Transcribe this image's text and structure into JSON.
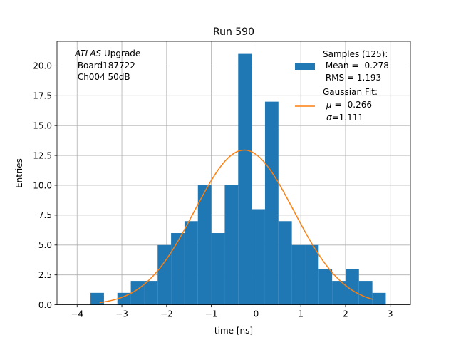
{
  "chart_data": {
    "type": "bar",
    "title": "Run 590",
    "xlabel": "time [ns]",
    "ylabel": "Entries",
    "xlim": [
      -4.45,
      3.45
    ],
    "ylim": [
      0,
      22.05
    ],
    "grid": true,
    "xticks": [
      -4,
      -3,
      -2,
      -1,
      0,
      1,
      2,
      3
    ],
    "xtick_labels": [
      "−4",
      "−3",
      "−2",
      "−1",
      "0",
      "1",
      "2",
      "3"
    ],
    "yticks": [
      0,
      2.5,
      5,
      7.5,
      10,
      12.5,
      15,
      17.5,
      20
    ],
    "ytick_labels": [
      "0.0",
      "2.5",
      "5.0",
      "7.5",
      "10.0",
      "12.5",
      "15.0",
      "17.5",
      "20.0"
    ],
    "bin_edges": [
      -3.7,
      -3.4,
      -3.1,
      -2.8,
      -2.5,
      -2.2,
      -1.9,
      -1.6,
      -1.3,
      -1.0,
      -0.7,
      -0.4,
      -0.1,
      0.2,
      0.5,
      0.8,
      1.1,
      1.4,
      1.7,
      2.0,
      2.3,
      2.6,
      2.9
    ],
    "counts": [
      1,
      0,
      1,
      2,
      2,
      5,
      6,
      7,
      10,
      6,
      10,
      21,
      8,
      17,
      7,
      5,
      5,
      3,
      2,
      3,
      2,
      1
    ],
    "bar_color": "#1f77b4",
    "fit": {
      "mu": -0.266,
      "sigma": 1.111,
      "amplitude": 12.95,
      "x_range": [
        -3.5,
        2.62
      ],
      "color": "#ff7f0e"
    },
    "annotation": {
      "italic": "ATLAS",
      "line1_rest": " Upgrade",
      "line2": " Board187722",
      "line3": " Ch004 50dB"
    },
    "legend": {
      "position": "top-right",
      "hist_line1": "Samples (125):",
      "hist_line2": " Mean = -0.278",
      "hist_line3": " RMS = 1.193",
      "fit_line1": "Gaussian Fit:",
      "fit_line2_sym": "μ",
      "fit_line2_rest": " = -0.266",
      "fit_line3_sym": "σ",
      "fit_line3_rest": "=1.111"
    }
  }
}
